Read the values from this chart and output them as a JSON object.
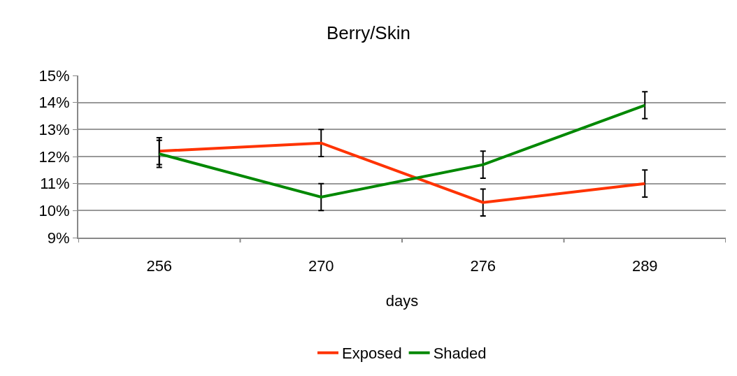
{
  "chart_data": {
    "type": "line",
    "title": "Berry/Skin",
    "xlabel": "days",
    "categories": [
      "256",
      "270",
      "276",
      "289"
    ],
    "series": [
      {
        "name": "Exposed",
        "color": "#ff3300",
        "values": [
          12.2,
          12.5,
          10.3,
          11.0
        ],
        "errors": [
          0.5,
          0.5,
          0.5,
          0.5
        ]
      },
      {
        "name": "Shaded",
        "color": "#008800",
        "values": [
          12.1,
          10.5,
          11.7,
          13.9
        ],
        "errors": [
          0.5,
          0.5,
          0.5,
          0.5
        ]
      }
    ],
    "ylim": [
      9,
      15
    ],
    "yticks": [
      {
        "value": 9,
        "label": "9%"
      },
      {
        "value": 10,
        "label": "10%"
      },
      {
        "value": 11,
        "label": "11%"
      },
      {
        "value": 12,
        "label": "12%"
      },
      {
        "value": 13,
        "label": "13%"
      },
      {
        "value": 14,
        "label": "14%"
      },
      {
        "value": 15,
        "label": "15%"
      }
    ],
    "grid": "y",
    "legend": "bottom",
    "marker": "none",
    "line_style": "solid"
  }
}
